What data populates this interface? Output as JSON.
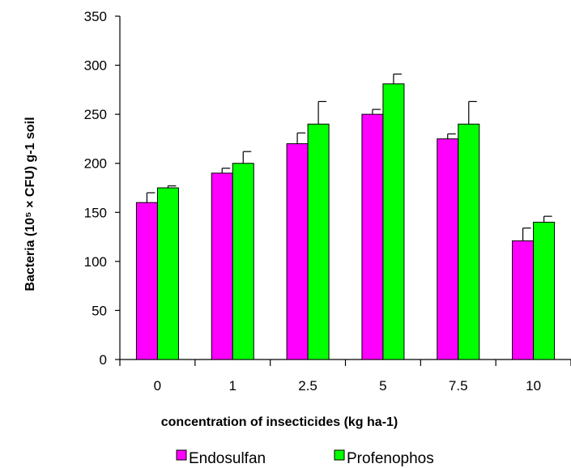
{
  "chart_data": {
    "type": "bar",
    "categories": [
      "0",
      "1",
      "2.5",
      "5",
      "7.5",
      "10"
    ],
    "series": [
      {
        "name": "Endosulfan",
        "color": "#ff00ff",
        "values": [
          160,
          190,
          220,
          250,
          225,
          121
        ],
        "errors": [
          10,
          5,
          11,
          5,
          5,
          13
        ]
      },
      {
        "name": "Profenophos",
        "color": "#00ff00",
        "values": [
          175,
          200,
          240,
          281,
          240,
          140
        ],
        "errors": [
          2,
          12,
          23,
          10,
          23,
          6
        ]
      }
    ],
    "xlabel": "concentration of insecticides (kg ha-1)",
    "ylabel": "Bacteria (10⁵ × CFU) g-1 soil",
    "ylim": [
      0,
      350
    ],
    "yticks": [
      0,
      50,
      100,
      150,
      200,
      250,
      300,
      350
    ],
    "legend_position": "bottom",
    "grid": false
  }
}
